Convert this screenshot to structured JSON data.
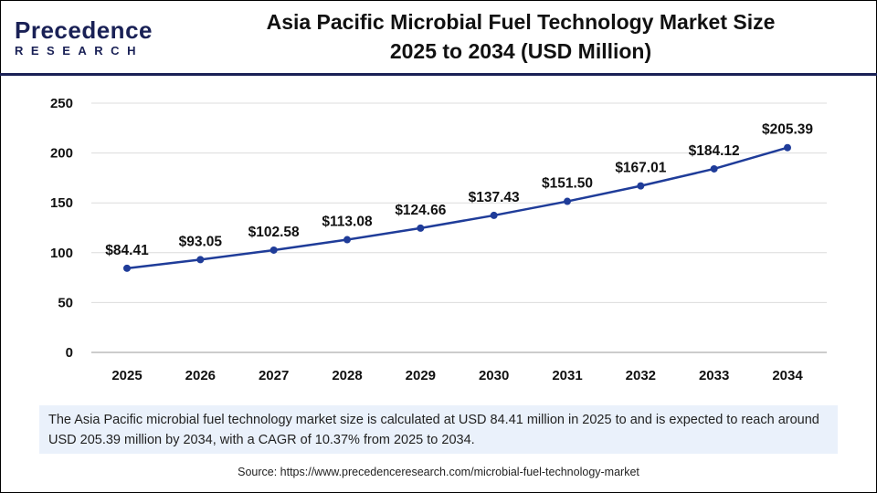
{
  "logo": {
    "top": "Precedence",
    "bottom": "RESEARCH"
  },
  "title_line1": "Asia Pacific Microbial Fuel Technology Market Size",
  "title_line2": "2025 to 2034 (USD Million)",
  "description": "The Asia Pacific microbial fuel technology market size is calculated at USD 84.41 million in 2025 to and is expected to reach around USD 205.39 million by 2034, with a CAGR of 10.37% from 2025 to 2034.",
  "source": "Source: https://www.precedenceresearch.com/microbial-fuel-technology-market",
  "chart_data": {
    "type": "line",
    "categories": [
      "2025",
      "2026",
      "2027",
      "2028",
      "2029",
      "2030",
      "2031",
      "2032",
      "2033",
      "2034"
    ],
    "values": [
      84.41,
      93.05,
      102.58,
      113.08,
      124.66,
      137.43,
      151.5,
      167.01,
      184.12,
      205.39
    ],
    "data_labels": [
      "$84.41",
      "$93.05",
      "$102.58",
      "$113.08",
      "$124.66",
      "$137.43",
      "$151.50",
      "$167.01",
      "$184.12",
      "$205.39"
    ],
    "yticks": [
      0,
      50,
      100,
      150,
      200,
      250
    ],
    "ylim": [
      0,
      250
    ],
    "grid": true,
    "line_color": "#1f3c99",
    "title": "Asia Pacific Microbial Fuel Technology Market Size 2025 to 2034 (USD Million)"
  }
}
